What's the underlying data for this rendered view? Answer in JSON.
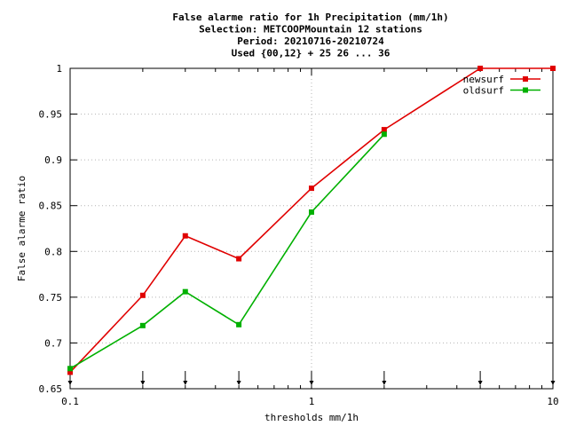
{
  "chart_data": {
    "type": "line",
    "title_lines": [
      "False alarme ratio  for 1h Precipitation (mm/1h)",
      "Selection: METCOOPMountain     12 stations",
      "Period: 20210716-20210724",
      "Used {00,12} + 25 26 ... 36"
    ],
    "xlabel": "thresholds mm/1h",
    "ylabel": "False alarme ratio",
    "x_scale": "log",
    "xlim": [
      0.1,
      10
    ],
    "ylim": [
      0.65,
      1
    ],
    "x_ticks": [
      {
        "v": 0.1,
        "label": "0.1"
      },
      {
        "v": 1,
        "label": "1"
      },
      {
        "v": 10,
        "label": "10"
      }
    ],
    "y_ticks": [
      {
        "v": 0.65,
        "label": "0.65"
      },
      {
        "v": 0.7,
        "label": "0.7"
      },
      {
        "v": 0.75,
        "label": "0.75"
      },
      {
        "v": 0.8,
        "label": "0.8"
      },
      {
        "v": 0.85,
        "label": "0.85"
      },
      {
        "v": 0.9,
        "label": "0.9"
      },
      {
        "v": 0.95,
        "label": "0.95"
      },
      {
        "v": 1,
        "label": "1"
      }
    ],
    "threshold_markers": [
      0.1,
      0.2,
      0.3,
      0.5,
      1,
      2,
      5,
      10
    ],
    "grid": true,
    "legend_position": "top-right",
    "series": [
      {
        "name": "newsurf",
        "color": "#e00000",
        "x": [
          0.1,
          0.2,
          0.3,
          0.5,
          1,
          2,
          5,
          10
        ],
        "y": [
          0.668,
          0.752,
          0.817,
          0.792,
          0.869,
          0.933,
          1.0,
          1.0
        ]
      },
      {
        "name": "oldsurf",
        "color": "#00b000",
        "x": [
          0.1,
          0.2,
          0.3,
          0.5,
          1,
          2
        ],
        "y": [
          0.672,
          0.719,
          0.756,
          0.72,
          0.843,
          0.928
        ]
      }
    ]
  }
}
